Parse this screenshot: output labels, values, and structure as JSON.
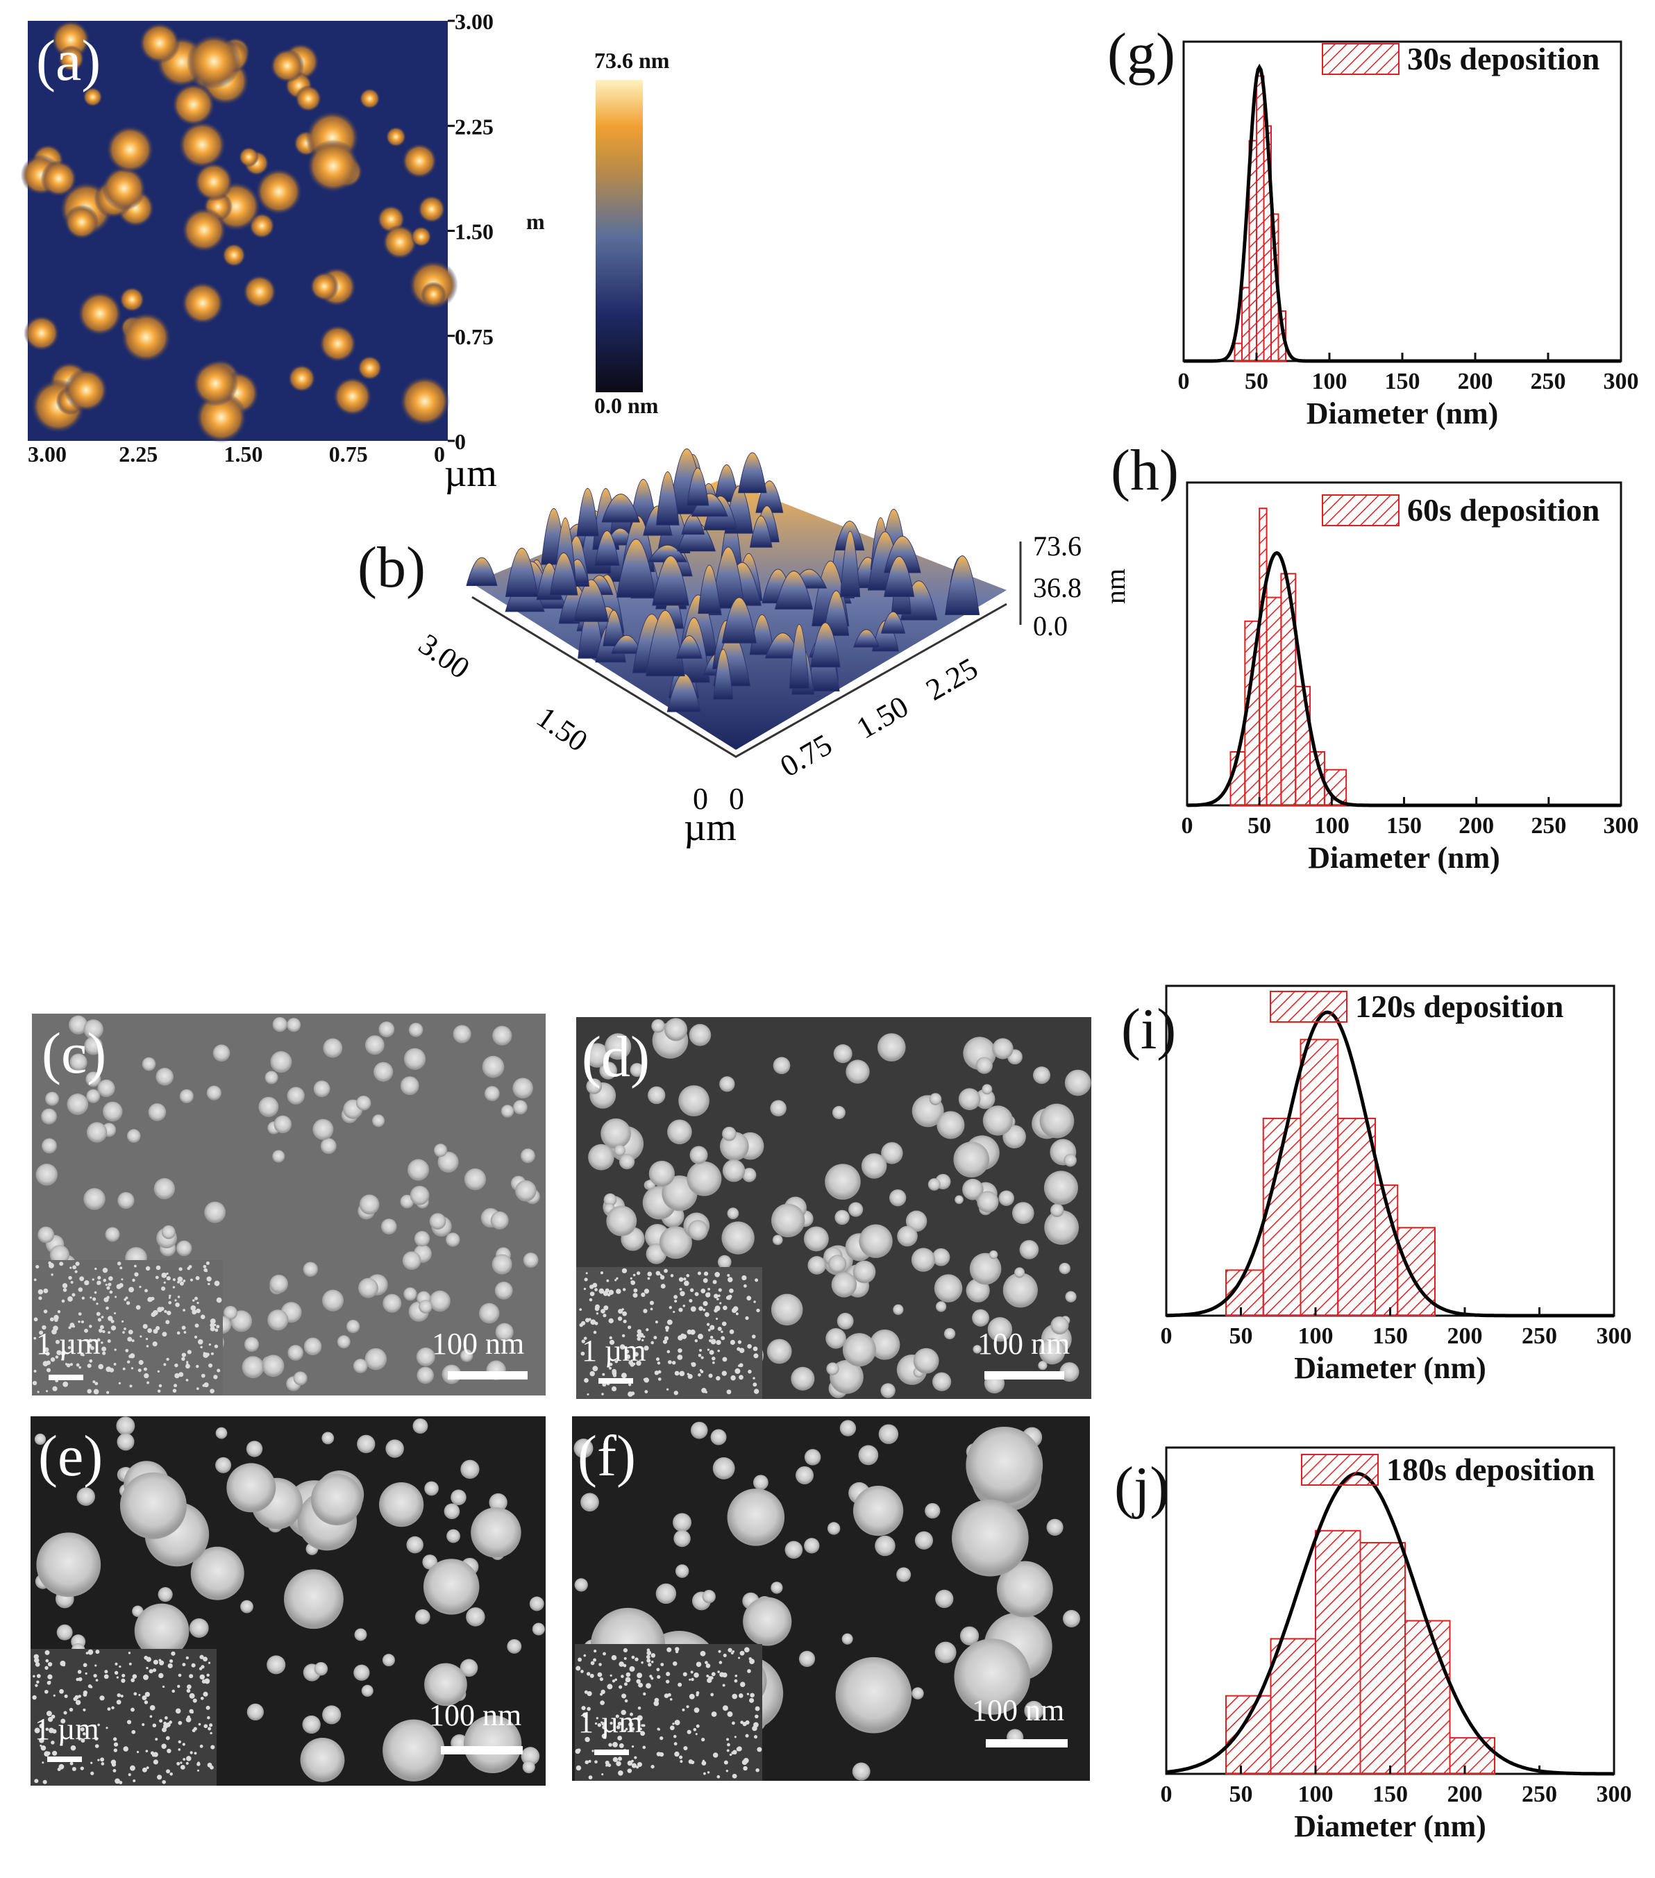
{
  "panels": {
    "a": {
      "label": "(a)",
      "unit": "µm",
      "y_ticks": [
        "3.00",
        "2.25",
        "1.50",
        "0.75",
        "0"
      ],
      "x_ticks": [
        "3.00",
        "2.25",
        "1.50",
        "0.75",
        "0"
      ],
      "y_unit_fragment": "m"
    },
    "colorbar": {
      "max": "73.6 nm",
      "min": "0.0 nm",
      "colors": [
        "#0a0a14",
        "#1f2a66",
        "#5a6f9a",
        "#b58a4a",
        "#f0a030",
        "#fff1c0"
      ]
    },
    "b": {
      "label": "(b)",
      "z_ticks": [
        "73.6",
        "36.8",
        "0.0"
      ],
      "z_unit": "nm",
      "x_ticks": [
        "3.00",
        "1.50",
        "0"
      ],
      "y_ticks": [
        "0",
        "0.75",
        "1.50",
        "2.25"
      ],
      "unit": "µm"
    },
    "c": {
      "label": "(c)",
      "inset_scale": "1 µm",
      "scale": "100 nm"
    },
    "d": {
      "label": "(d)",
      "inset_scale": "1 µm",
      "scale": "100 nm"
    },
    "e": {
      "label": "(e)",
      "inset_scale": "1 µm",
      "scale": "100 nm"
    },
    "f": {
      "label": "(f)",
      "inset_scale": "1 µm",
      "scale": "100 nm"
    }
  },
  "colors": {
    "bar": "#e02020",
    "fit": "#000000"
  },
  "chart_data": [
    {
      "id": "g",
      "label": "(g)",
      "type": "bar",
      "title": "30s deposition",
      "xlabel": "Diameter (nm)",
      "ylabel": "",
      "xlim": [
        0,
        300
      ],
      "x_ticks": [
        0,
        50,
        100,
        150,
        200,
        250,
        300
      ],
      "bins": [
        [
          35,
          40,
          0.06
        ],
        [
          40,
          45,
          0.25
        ],
        [
          45,
          50,
          0.75
        ],
        [
          50,
          55,
          0.97
        ],
        [
          55,
          60,
          0.8
        ],
        [
          60,
          65,
          0.5
        ],
        [
          65,
          70,
          0.17
        ]
      ],
      "fit": {
        "mean": 52,
        "sd": 7.5,
        "peak": 1.0
      }
    },
    {
      "id": "h",
      "label": "(h)",
      "type": "bar",
      "title": "60s deposition",
      "xlabel": "Diameter (nm)",
      "ylabel": "",
      "xlim": [
        0,
        300
      ],
      "x_ticks": [
        0,
        50,
        100,
        150,
        200,
        250,
        300
      ],
      "bins": [
        [
          30,
          40,
          0.18
        ],
        [
          40,
          50,
          0.62
        ],
        [
          50,
          55,
          1.0
        ],
        [
          55,
          65,
          0.7
        ],
        [
          65,
          75,
          0.78
        ],
        [
          75,
          85,
          0.4
        ],
        [
          85,
          95,
          0.18
        ],
        [
          95,
          110,
          0.12
        ]
      ],
      "fit": {
        "mean": 62,
        "sd": 15,
        "peak": 0.85
      }
    },
    {
      "id": "i",
      "label": "(i)",
      "type": "bar",
      "title": "120s deposition",
      "xlabel": "Diameter (nm)",
      "ylabel": "",
      "xlim": [
        0,
        300
      ],
      "x_ticks": [
        0,
        50,
        100,
        150,
        200,
        250,
        300
      ],
      "bins": [
        [
          40,
          65,
          0.15
        ],
        [
          65,
          90,
          0.65
        ],
        [
          90,
          115,
          0.91
        ],
        [
          115,
          140,
          0.65
        ],
        [
          140,
          155,
          0.43
        ],
        [
          155,
          180,
          0.29
        ]
      ],
      "fit": {
        "mean": 108,
        "sd": 28,
        "peak": 1.0
      }
    },
    {
      "id": "j",
      "label": "(j)",
      "type": "bar",
      "title": "180s deposition",
      "xlabel": "Diameter (nm)",
      "ylabel": "",
      "xlim": [
        0,
        300
      ],
      "x_ticks": [
        0,
        50,
        100,
        150,
        200,
        250,
        300
      ],
      "bins": [
        [
          40,
          70,
          0.26
        ],
        [
          70,
          100,
          0.45
        ],
        [
          100,
          130,
          0.81
        ],
        [
          130,
          160,
          0.77
        ],
        [
          160,
          190,
          0.51
        ],
        [
          190,
          220,
          0.12
        ]
      ],
      "fit": {
        "mean": 128,
        "sd": 40,
        "peak": 1.0
      }
    }
  ]
}
